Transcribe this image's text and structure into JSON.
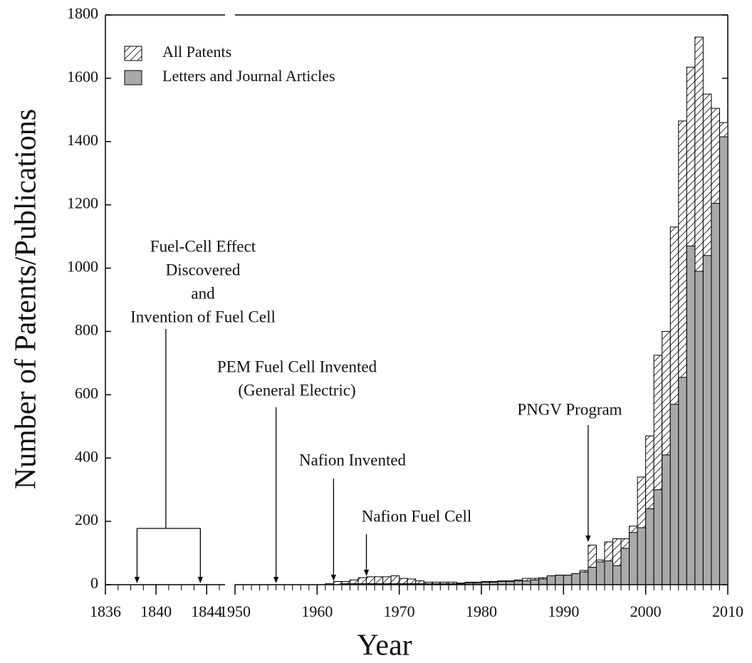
{
  "chart_data": {
    "type": "bar",
    "x_label": "Year",
    "y_label": "Number of Patents/Publications",
    "ylim": [
      0,
      1800
    ],
    "yticks": [
      0,
      200,
      400,
      600,
      800,
      1000,
      1200,
      1400,
      1600,
      1800
    ],
    "x_segments": [
      {
        "xlim": [
          1836,
          1845
        ],
        "xticks": [
          1836,
          1840,
          1844
        ]
      },
      {
        "xlim": [
          1950,
          2010
        ],
        "xticks": [
          1950,
          1960,
          1970,
          1980,
          1990,
          2000,
          2010
        ]
      }
    ],
    "x": [
      1961,
      1962,
      1963,
      1964,
      1965,
      1966,
      1967,
      1968,
      1969,
      1970,
      1971,
      1972,
      1973,
      1974,
      1975,
      1976,
      1977,
      1978,
      1979,
      1980,
      1981,
      1982,
      1983,
      1984,
      1985,
      1986,
      1987,
      1988,
      1989,
      1990,
      1991,
      1992,
      1993,
      1994,
      1995,
      1996,
      1997,
      1998,
      1999,
      2000,
      2001,
      2002,
      2003,
      2004,
      2005,
      2006,
      2007,
      2008,
      2009
    ],
    "series": [
      {
        "name": "All Patents",
        "color": "#ffffff",
        "hatch": true,
        "values": [
          3,
          10,
          10,
          15,
          22,
          25,
          25,
          25,
          28,
          20,
          18,
          12,
          8,
          8,
          8,
          8,
          5,
          8,
          8,
          10,
          10,
          12,
          12,
          15,
          20,
          20,
          22,
          25,
          30,
          30,
          35,
          45,
          125,
          78,
          135,
          145,
          145,
          185,
          340,
          470,
          725,
          800,
          1130,
          1465,
          1635,
          1730,
          1550,
          1505,
          1460
        ]
      },
      {
        "name": "Letters and Journal Articles",
        "color": "#a9a9a9",
        "hatch": false,
        "values": [
          0,
          0,
          3,
          3,
          3,
          3,
          3,
          3,
          3,
          3,
          3,
          3,
          3,
          3,
          3,
          3,
          3,
          5,
          5,
          8,
          8,
          10,
          10,
          12,
          12,
          15,
          18,
          28,
          30,
          30,
          35,
          40,
          55,
          72,
          75,
          60,
          115,
          165,
          180,
          240,
          300,
          410,
          570,
          655,
          1070,
          990,
          1040,
          1205,
          1415
        ]
      }
    ],
    "legend": "top-left",
    "annotations": [
      {
        "text": [
          "Fuel-Cell Effect",
          "Discovered",
          "and",
          "Invention of Fuel Cell"
        ],
        "x": [
          1838.5,
          1843.5
        ]
      },
      {
        "text": [
          "PEM Fuel Cell Invented",
          "(General Electric)"
        ],
        "x": [
          1955
        ]
      },
      {
        "text": [
          "Nafion Invented"
        ],
        "x": [
          1962
        ]
      },
      {
        "text": [
          "Nafion Fuel Cell"
        ],
        "x": [
          1966
        ]
      },
      {
        "text": [
          "PNGV Program"
        ],
        "x": [
          1993
        ]
      }
    ]
  }
}
